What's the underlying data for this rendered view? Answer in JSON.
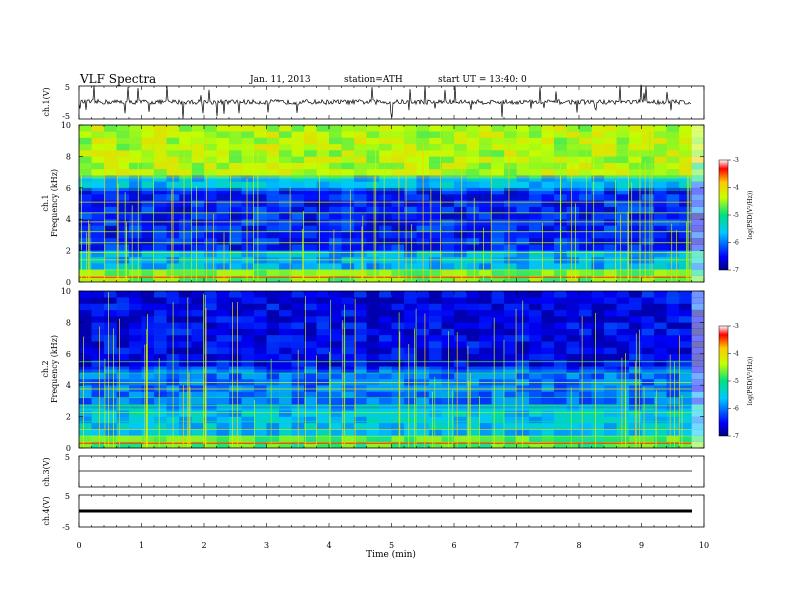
{
  "header": {
    "title": "VLF Spectra",
    "date": "Jan. 11, 2013",
    "station": "station=ATH",
    "start": "start UT = 13:40: 0"
  },
  "chart_data": [
    {
      "type": "line",
      "name": "ch1-waveform",
      "ylabel": "ch.1(V)",
      "ylim": [
        -5,
        5
      ],
      "ytick_labels": [
        "5",
        "-5"
      ],
      "x_range_min": [
        0,
        9.8
      ]
    },
    {
      "type": "heatmap",
      "name": "ch1-spectrogram",
      "ylabel_line1": "ch.1",
      "ylabel_line2": "Frequency (kHz)",
      "ylim": [
        0,
        10
      ],
      "yticks": [
        "0",
        "2",
        "4",
        "6",
        "8",
        "10"
      ],
      "x_range_min": [
        0,
        9.8
      ],
      "bands": [
        {
          "f": [
            0.0,
            0.8
          ],
          "level": -4.6
        },
        {
          "f": [
            0.8,
            2.0
          ],
          "level": -5.7
        },
        {
          "f": [
            2.0,
            5.8
          ],
          "level": -6.4
        },
        {
          "f": [
            5.8,
            6.6
          ],
          "level": -5.6
        },
        {
          "f": [
            6.6,
            10.0
          ],
          "level": -4.4
        }
      ],
      "colorbar": {
        "label": "log(PSD(V²/Hz))",
        "ticks": [
          "-3",
          "-4",
          "-5",
          "-6",
          "-7"
        ],
        "range": [
          -7,
          -3
        ]
      }
    },
    {
      "type": "heatmap",
      "name": "ch2-spectrogram",
      "ylabel_line1": "ch.2",
      "ylabel_line2": "Frequency (kHz)",
      "ylim": [
        0,
        10
      ],
      "yticks": [
        "0",
        "2",
        "4",
        "6",
        "8",
        "10"
      ],
      "x_range_min": [
        0,
        9.8
      ],
      "bands": [
        {
          "f": [
            0.0,
            0.8
          ],
          "level": -4.8
        },
        {
          "f": [
            0.8,
            2.5
          ],
          "level": -5.6
        },
        {
          "f": [
            2.5,
            5.0
          ],
          "level": -6.0
        },
        {
          "f": [
            5.0,
            10.0
          ],
          "level": -6.6
        }
      ],
      "colorbar": {
        "label": "log(PSD(V²/Hz))",
        "ticks": [
          "-3",
          "-4",
          "-5",
          "-6",
          "-7"
        ],
        "range": [
          -7,
          -3
        ]
      }
    },
    {
      "type": "line",
      "name": "ch3-waveform",
      "ylabel": "ch.3(V)",
      "ylim": [
        -5,
        5
      ],
      "ytick_labels": [
        "5"
      ],
      "x_range_min": [
        0,
        9.8
      ]
    },
    {
      "type": "line",
      "name": "ch4-waveform",
      "ylabel": "ch.4(V)",
      "ylim": [
        -5,
        5
      ],
      "ytick_labels": [
        "5",
        "-5"
      ],
      "x_range_min": [
        0,
        9.8
      ]
    }
  ],
  "xaxis": {
    "label": "Time (min)",
    "ticks": [
      "0",
      "1",
      "2",
      "3",
      "4",
      "5",
      "6",
      "7",
      "8",
      "9",
      "10"
    ],
    "xlim": [
      0,
      10
    ]
  }
}
